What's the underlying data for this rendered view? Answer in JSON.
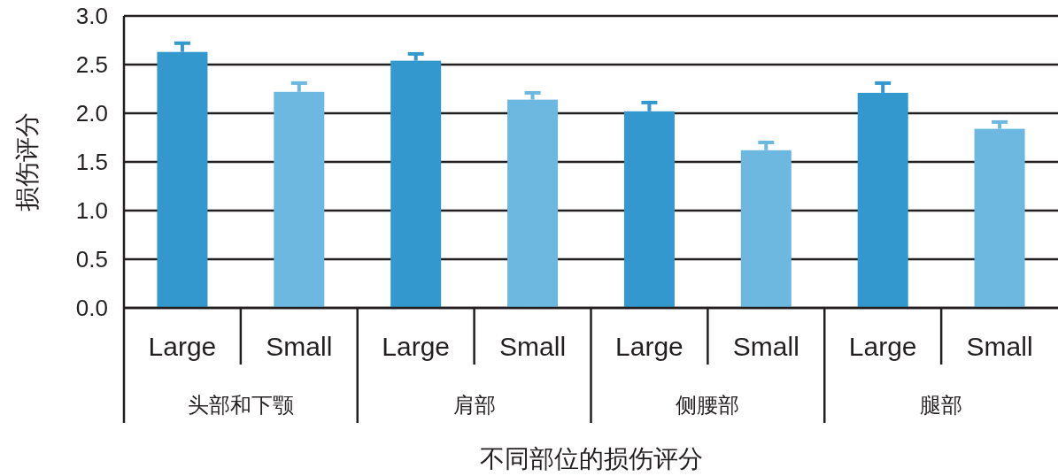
{
  "chart_data": {
    "type": "bar",
    "xlabel": "不同部位的损伤评分",
    "ylabel": "损伤评分",
    "categories": [
      "头部和下颚",
      "肩部",
      "侧腰部",
      "腿部"
    ],
    "series": [
      {
        "name": "Large",
        "color": "#3398cd",
        "values": [
          2.63,
          2.54,
          2.02,
          2.21
        ],
        "errors": [
          [
            2.63,
            2.72
          ],
          [
            2.54,
            2.61
          ],
          [
            2.02,
            2.11
          ],
          [
            2.21,
            2.31
          ]
        ]
      },
      {
        "name": "Small",
        "color": "#6cb8e0",
        "values": [
          2.22,
          2.14,
          1.62,
          1.84
        ],
        "errors": [
          [
            2.22,
            2.31
          ],
          [
            2.14,
            2.21
          ],
          [
            1.62,
            1.7
          ],
          [
            1.84,
            1.91
          ]
        ]
      }
    ],
    "ylim": [
      0,
      3
    ],
    "yticks": [
      {
        "value": 0,
        "label": "0.0"
      },
      {
        "value": 0.5,
        "label": "0.5"
      },
      {
        "value": 1,
        "label": "1.0"
      },
      {
        "value": 1.5,
        "label": "1.5"
      },
      {
        "value": 2,
        "label": "2.0"
      },
      {
        "value": 2.5,
        "label": "2.5"
      },
      {
        "value": 3,
        "label": "3.0"
      }
    ],
    "grid": "y",
    "legend": false
  }
}
